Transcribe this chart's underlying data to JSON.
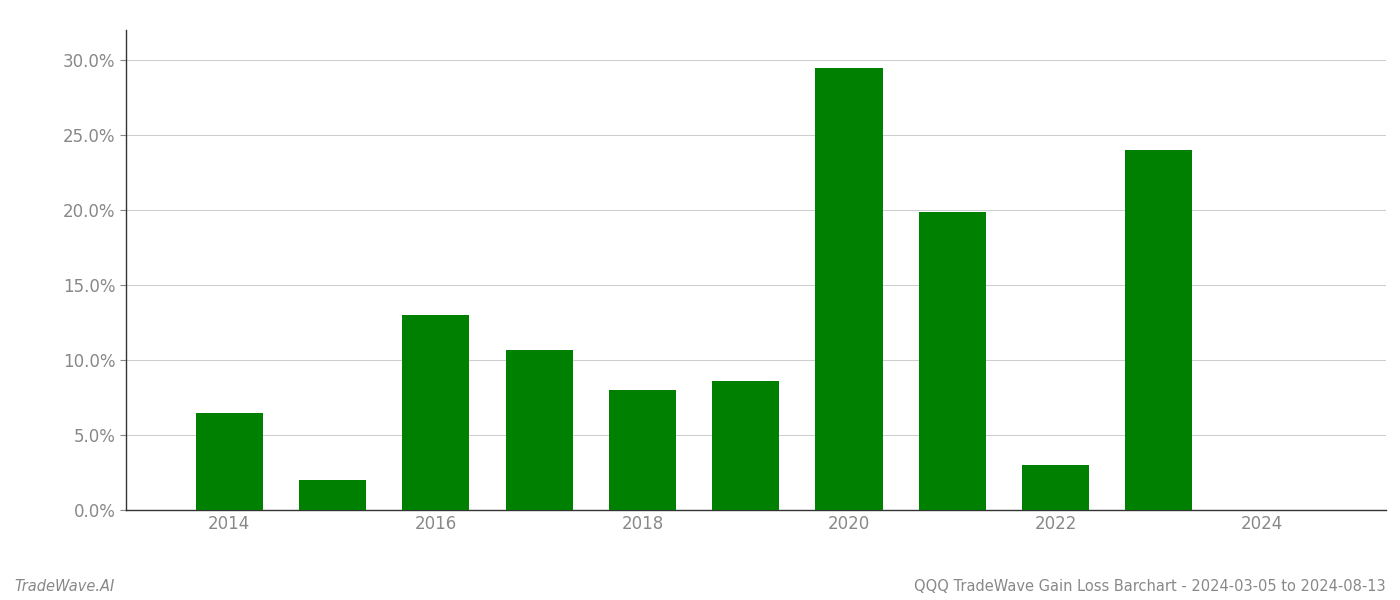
{
  "years": [
    2014,
    2015,
    2016,
    2017,
    2018,
    2019,
    2020,
    2021,
    2022,
    2023,
    2024
  ],
  "values": [
    0.065,
    0.02,
    0.13,
    0.107,
    0.08,
    0.086,
    0.295,
    0.199,
    0.03,
    0.24,
    0.0
  ],
  "bar_color": "#008000",
  "background_color": "#ffffff",
  "grid_color": "#cccccc",
  "ylim": [
    0.0,
    0.32
  ],
  "yticks": [
    0.0,
    0.05,
    0.1,
    0.15,
    0.2,
    0.25,
    0.3
  ],
  "xlabel_color": "#888888",
  "footer_left": "TradeWave.AI",
  "footer_right": "QQQ TradeWave Gain Loss Barchart - 2024-03-05 to 2024-08-13",
  "footer_fontsize": 10.5,
  "tick_fontsize": 12,
  "bar_width": 0.65,
  "xlim_left": 2013.0,
  "xlim_right": 2025.2,
  "spine_color": "#333333",
  "grid_linewidth": 0.7
}
